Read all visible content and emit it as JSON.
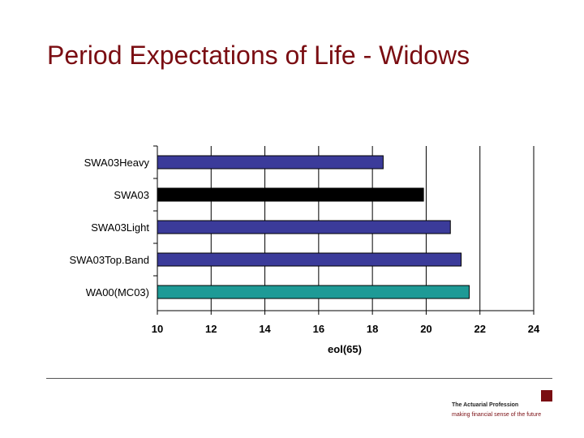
{
  "slide": {
    "title": "Period Expectations of Life - Widows"
  },
  "chart_data": {
    "type": "bar",
    "orientation": "horizontal",
    "title": "",
    "xlabel": "eol(65)",
    "ylabel": "",
    "xlim": [
      10,
      24
    ],
    "xticks": [
      10,
      12,
      14,
      16,
      18,
      20,
      22,
      24
    ],
    "grid": true,
    "categories": [
      "SWA03Heavy",
      "SWA03",
      "SWA03Light",
      "SWA03Top.Band",
      "WA00(MC03)"
    ],
    "values": [
      18.4,
      19.9,
      20.9,
      21.3,
      21.6
    ],
    "colors": [
      "#3b3b9a",
      "#000000",
      "#3b3b9a",
      "#3b3b9a",
      "#1e9a96"
    ]
  },
  "footer": {
    "org_name": "The Actuarial Profession",
    "tagline": "making financial sense of the future",
    "brand_color": "#7a0d12"
  }
}
